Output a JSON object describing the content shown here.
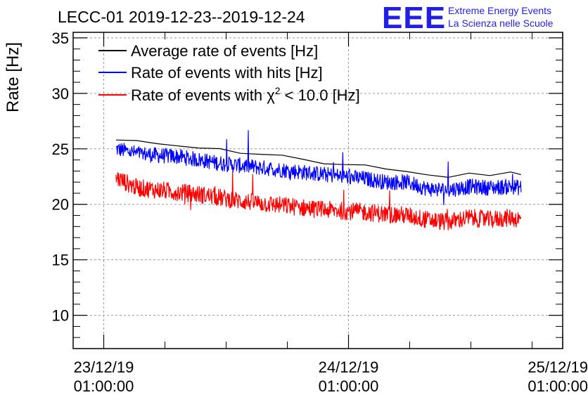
{
  "chart_data": {
    "type": "line",
    "title": "LECC-01 2019-12-23--2019-12-24",
    "ylabel": "Rate [Hz]",
    "xlabel": "",
    "ylim": [
      7,
      35.5
    ],
    "yticks": [
      10,
      15,
      20,
      25,
      30,
      35
    ],
    "xlim": [
      0,
      2.0
    ],
    "x_unit": "days since 22/12/19 22:00",
    "xticks": [
      {
        "x": 0.125,
        "date": "23/12/19",
        "time": "01:00:00"
      },
      {
        "x": 1.125,
        "date": "24/12/19",
        "time": "01:00:00"
      },
      {
        "x": 2.125,
        "date": "25/12/19",
        "time": "01:00:00"
      }
    ],
    "grid": true,
    "legend_position": "top-left",
    "logo": {
      "mark": "EEE",
      "line1": "Extreme Energy Events",
      "line2": "La Scienza nelle Scuole"
    },
    "series": [
      {
        "name": "Average rate of events [Hz]",
        "color": "#000000",
        "label_plain": "",
        "x": [
          0.0,
          0.1,
          0.2,
          0.3,
          0.4,
          0.5,
          0.6,
          0.7,
          0.8,
          0.9,
          1.0,
          1.1,
          1.2,
          1.3,
          1.4,
          1.5,
          1.6,
          1.7,
          1.8,
          1.9,
          1.95
        ],
        "values": [
          25.8,
          25.6,
          25.5,
          25.4,
          25.0,
          24.9,
          24.7,
          24.6,
          24.3,
          24.0,
          23.8,
          23.6,
          23.4,
          23.2,
          23.1,
          22.6,
          22.3,
          22.9,
          22.7,
          22.8,
          22.6
        ]
      },
      {
        "name": "Rate of events with hits [Hz]",
        "color": "#0000ff",
        "label_plain": "",
        "x": [
          0.0,
          0.1,
          0.2,
          0.3,
          0.4,
          0.5,
          0.6,
          0.7,
          0.8,
          0.9,
          1.0,
          1.1,
          1.2,
          1.3,
          1.4,
          1.5,
          1.6,
          1.7,
          1.8,
          1.9,
          1.95
        ],
        "values": [
          25.0,
          24.6,
          24.4,
          24.3,
          24.0,
          23.7,
          23.5,
          23.3,
          23.1,
          22.9,
          22.7,
          22.5,
          22.3,
          22.0,
          22.0,
          21.4,
          21.3,
          21.6,
          21.5,
          21.6,
          21.5
        ],
        "noise": 0.7
      },
      {
        "name": "",
        "color": "#ff0000",
        "label_prefix": "Rate of events with χ",
        "label_sup": "2",
        "label_suffix": " < 10.0 [Hz]",
        "x": [
          0.0,
          0.1,
          0.2,
          0.3,
          0.4,
          0.5,
          0.6,
          0.7,
          0.8,
          0.9,
          1.0,
          1.1,
          1.2,
          1.3,
          1.4,
          1.5,
          1.6,
          1.7,
          1.8,
          1.9,
          1.95
        ],
        "values": [
          22.4,
          21.5,
          21.3,
          21.1,
          20.9,
          20.6,
          20.3,
          20.1,
          19.9,
          19.7,
          19.5,
          19.4,
          19.3,
          19.1,
          19.0,
          18.6,
          18.4,
          18.8,
          18.6,
          18.8,
          18.6
        ],
        "noise": 0.8
      }
    ]
  }
}
